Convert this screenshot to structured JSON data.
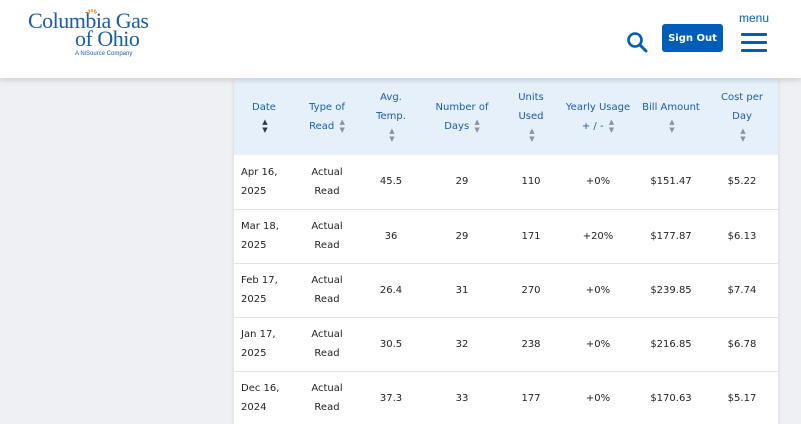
{
  "header": {
    "logo": {
      "line1": "Columbia Gas",
      "line2": "of Ohio",
      "tagline": "A NiSource Company"
    },
    "sign_out_label": "Sign Out",
    "menu_label": "menu",
    "brand_color": "#005eb8"
  },
  "table": {
    "columns": [
      "Date",
      "Type of Read",
      "Avg. Temp.",
      "Number of Days",
      "Units Used",
      "Yearly Usage + / -",
      "Bill Amount",
      "Cost per Day"
    ],
    "rows": [
      [
        "Apr 16, 2025",
        "Actual Read",
        "45.5",
        "29",
        "110",
        "+0%",
        "$151.47",
        "$5.22"
      ],
      [
        "Mar 18, 2025",
        "Actual Read",
        "36",
        "29",
        "171",
        "+20%",
        "$177.87",
        "$6.13"
      ],
      [
        "Feb 17, 2025",
        "Actual Read",
        "26.4",
        "31",
        "270",
        "+0%",
        "$239.85",
        "$7.74"
      ],
      [
        "Jan 17, 2025",
        "Actual Read",
        "30.5",
        "32",
        "238",
        "+0%",
        "$216.85",
        "$6.78"
      ],
      [
        "Dec 16, 2024",
        "Actual Read",
        "37.3",
        "33",
        "177",
        "+0%",
        "$170.63",
        "$5.17"
      ]
    ]
  }
}
